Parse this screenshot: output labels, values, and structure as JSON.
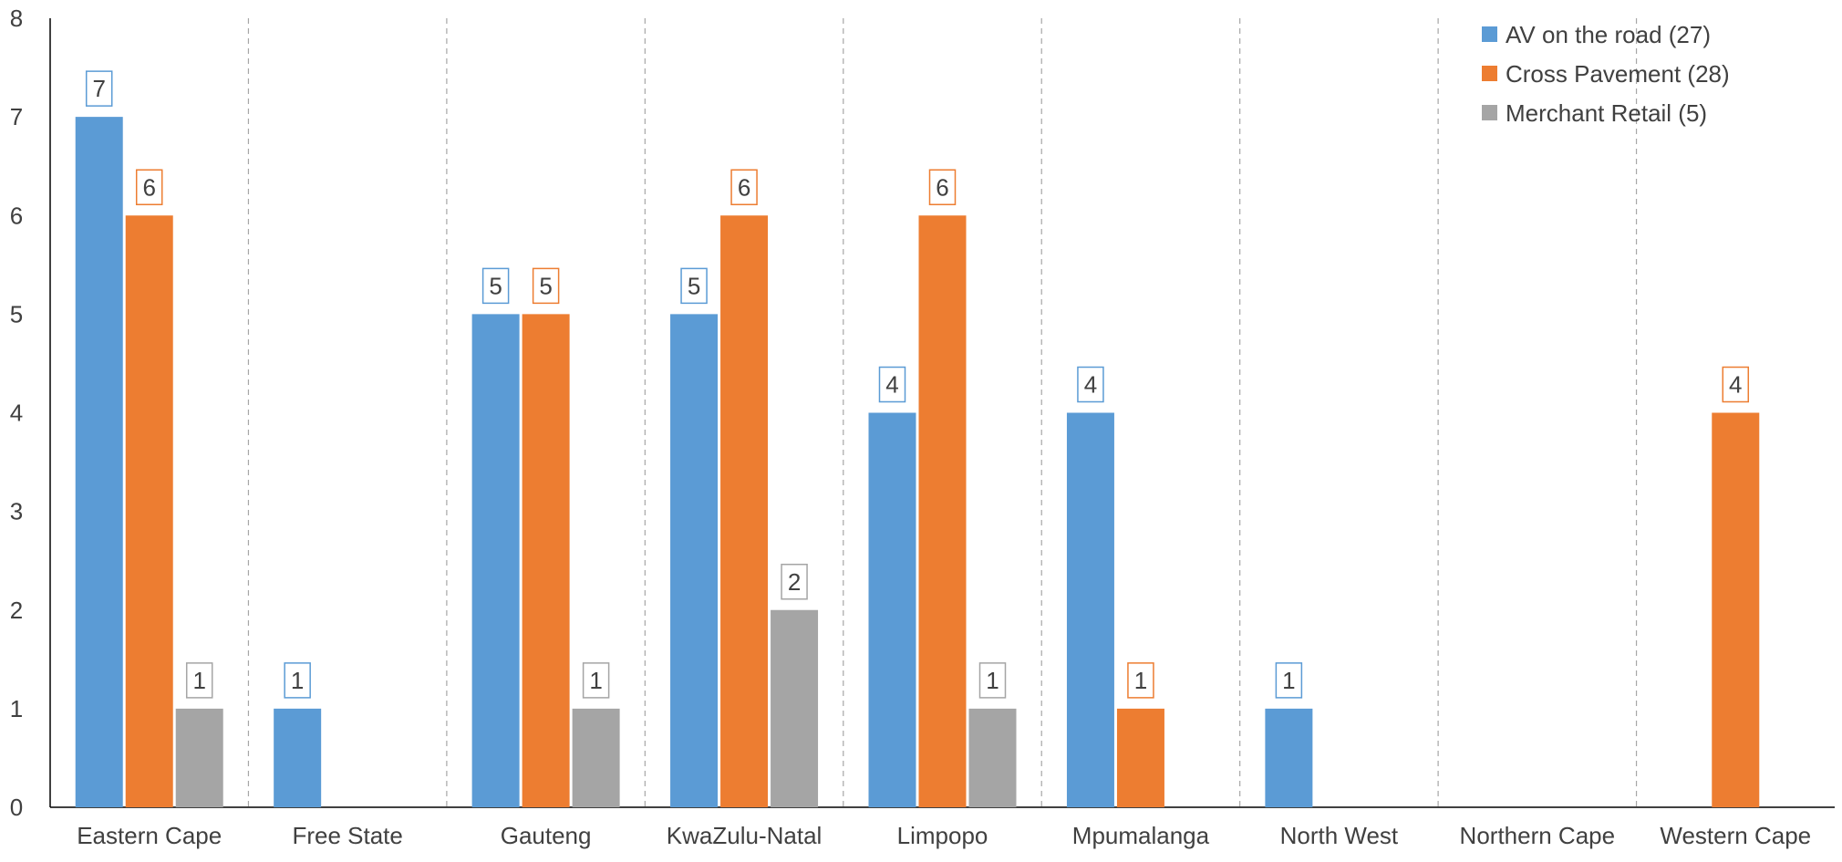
{
  "chart_data": {
    "type": "bar",
    "title": "",
    "xlabel": "",
    "ylabel": "",
    "ylim": [
      0,
      8
    ],
    "yticks": [
      0,
      1,
      2,
      3,
      4,
      5,
      6,
      7,
      8
    ],
    "grid": "vertical dashed separators between categories",
    "legend_position": "top-right",
    "categories": [
      "Eastern Cape",
      "Free State",
      "Gauteng",
      "KwaZulu-Natal",
      "Limpopo",
      "Mpumalanga",
      "North West",
      "Northern Cape",
      "Western Cape"
    ],
    "series": [
      {
        "name": "AV on the road (27)",
        "color": "#5b9bd5",
        "values": [
          7,
          1,
          5,
          5,
          4,
          4,
          1,
          0,
          0
        ]
      },
      {
        "name": "Cross Pavement (28)",
        "color": "#ed7d31",
        "values": [
          6,
          0,
          5,
          6,
          6,
          1,
          0,
          0,
          4
        ]
      },
      {
        "name": "Merchant Retail (5)",
        "color": "#a5a5a5",
        "values": [
          1,
          0,
          1,
          2,
          1,
          0,
          0,
          0,
          0
        ]
      }
    ]
  }
}
